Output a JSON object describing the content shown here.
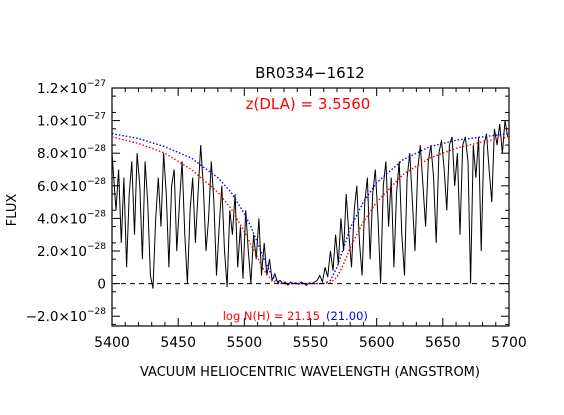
{
  "chart_data": {
    "type": "line",
    "title": "BR0334−1612",
    "xlabel": "VACUUM HELIOCENTRIC WAVELENGTH (ANGSTROM)",
    "ylabel": "FLUX",
    "xlim": [
      5400,
      5700
    ],
    "ylim": [
      -2.6e-28,
      1.2e-27
    ],
    "x_ticks": [
      5400,
      5450,
      5500,
      5550,
      5600,
      5650,
      5700
    ],
    "x_tick_labels": [
      "5400",
      "5450",
      "5500",
      "5550",
      "5600",
      "5650",
      "5700"
    ],
    "y_ticks": [
      {
        "value": -2e-28,
        "mant": "−2.0×10",
        "exp": "−28"
      },
      {
        "value": 0,
        "mant": "0",
        "exp": ""
      },
      {
        "value": 2e-28,
        "mant": "2.0×10",
        "exp": "−28"
      },
      {
        "value": 4e-28,
        "mant": "4.0×10",
        "exp": "−28"
      },
      {
        "value": 6e-28,
        "mant": "6.0×10",
        "exp": "−28"
      },
      {
        "value": 8e-28,
        "mant": "8.0×10",
        "exp": "−28"
      },
      {
        "value": 1e-27,
        "mant": "1.0×10",
        "exp": "−27"
      },
      {
        "value": 1.2e-27,
        "mant": "1.2×10",
        "exp": "−27"
      }
    ],
    "annotations": {
      "redshift": "z(DLA) = 3.5560",
      "logN_main": "log N(H) = 21.15",
      "logN_alt": "(21.00)"
    },
    "zero_line": {
      "y": 0,
      "style": "dashed"
    },
    "colors": {
      "spectrum": "#000000",
      "fit_main": "#ff0000",
      "fit_alt": "#0000ff",
      "zero": "#000000"
    },
    "series": [
      {
        "style": "solid",
        "color": "#000000",
        "x": [
          5400,
          5403,
          5405,
          5407,
          5409,
          5411,
          5413,
          5415,
          5417,
          5419,
          5421,
          5423,
          5425,
          5427,
          5429,
          5431,
          5433,
          5435,
          5437,
          5439,
          5441,
          5443,
          5445,
          5447,
          5449,
          5451,
          5453,
          5455,
          5457,
          5459,
          5461,
          5463,
          5465,
          5467,
          5469,
          5471,
          5473,
          5475,
          5477,
          5479,
          5481,
          5483,
          5485,
          5487,
          5489,
          5491,
          5493,
          5495,
          5497,
          5499,
          5501,
          5503,
          5505,
          5507,
          5509,
          5511,
          5513,
          5515,
          5517,
          5519,
          5521,
          5523,
          5525,
          5527,
          5529,
          5531,
          5533,
          5535,
          5537,
          5539,
          5541,
          5543,
          5545,
          5547,
          5549,
          5551,
          5553,
          5555,
          5557,
          5559,
          5561,
          5563,
          5565,
          5567,
          5569,
          5571,
          5573,
          5575,
          5577,
          5579,
          5581,
          5583,
          5585,
          5587,
          5589,
          5591,
          5593,
          5595,
          5597,
          5599,
          5601,
          5603,
          5605,
          5607,
          5609,
          5611,
          5613,
          5615,
          5617,
          5619,
          5621,
          5623,
          5625,
          5627,
          5629,
          5631,
          5633,
          5635,
          5637,
          5639,
          5641,
          5643,
          5645,
          5647,
          5649,
          5651,
          5653,
          5655,
          5657,
          5659,
          5661,
          5663,
          5665,
          5667,
          5669,
          5671,
          5673,
          5675,
          5677,
          5679,
          5681,
          5683,
          5685,
          5687,
          5689,
          5691,
          5693,
          5695,
          5697,
          5699
        ],
        "y": [
          8e-28,
          4.5e-28,
          7e-28,
          2.5e-28,
          6.5e-28,
          1e-28,
          5.5e-28,
          7.5e-28,
          3e-28,
          8e-28,
          6e-28,
          1.5e-28,
          7.5e-28,
          5e-28,
          5e-29,
          -3e-29,
          4e-28,
          6.5e-28,
          3.5e-28,
          8e-28,
          5.5e-28,
          1e-28,
          6e-28,
          7e-28,
          2e-28,
          5e-28,
          7.5e-28,
          3e-28,
          0.0,
          4.5e-28,
          6.5e-28,
          2.5e-28,
          5.5e-28,
          8.5e-28,
          6e-28,
          2e-28,
          4e-28,
          7.5e-28,
          5e-28,
          5e-29,
          3.5e-28,
          6e-28,
          2e-28,
          -2e-29,
          4.5e-28,
          3e-28,
          5.5e-28,
          1e-28,
          3.5e-28,
          3e-29,
          4.5e-28,
          2e-28,
          0.0,
          3e-28,
          1.5e-28,
          4e-28,
          5e-29,
          2.5e-28,
          5e-29,
          1.5e-28,
          2e-29,
          6e-29,
          1e-29,
          2e-29,
          0.0,
          1e-29,
          -1e-29,
          1e-29,
          0.0,
          5e-30,
          -5e-30,
          1e-29,
          0.0,
          -1e-29,
          5e-30,
          0.0,
          1e-29,
          2e-29,
          5e-29,
          1e-29,
          1e-28,
          4e-29,
          2e-28,
          8e-29,
          3e-28,
          1.2e-28,
          4e-28,
          2e-28,
          5.5e-28,
          3e-28,
          1e-28,
          4.5e-28,
          6e-28,
          2.5e-28,
          5e-29,
          5e-28,
          6.5e-28,
          1.5e-28,
          5.5e-28,
          7e-28,
          4e-28,
          0.0,
          6e-28,
          7.5e-28,
          3.5e-28,
          6.5e-28,
          1e-28,
          5.5e-28,
          7.5e-28,
          3e-28,
          5e-29,
          6.5e-28,
          8e-28,
          5e-28,
          2e-28,
          7e-28,
          8.5e-28,
          6e-28,
          3.5e-28,
          7.5e-28,
          8.5e-28,
          6.5e-28,
          2.5e-28,
          8e-28,
          8.8e-28,
          7e-28,
          4.5e-28,
          8.5e-28,
          9e-28,
          6e-28,
          8e-28,
          3e-28,
          8.5e-28,
          9e-28,
          7.5e-28,
          0.0,
          8.5e-28,
          6.5e-28,
          9e-28,
          2e-28,
          8.5e-28,
          9.2e-28,
          7e-28,
          5e-28,
          9.5e-28,
          8.5e-28,
          9.8e-28,
          8e-28,
          1e-27,
          9e-28
        ]
      },
      {
        "style": "dotted",
        "color": "#ff0000",
        "x": [
          5400,
          5420,
          5440,
          5460,
          5480,
          5490,
          5500,
          5505,
          5510,
          5515,
          5520,
          5525,
          5530,
          5535,
          5540,
          5545,
          5550,
          5555,
          5560,
          5565,
          5570,
          5575,
          5580,
          5590,
          5600,
          5620,
          5640,
          5660,
          5680,
          5700
        ],
        "y": [
          9e-28,
          8.6e-28,
          8e-28,
          7e-28,
          5.6e-28,
          4.6e-28,
          3.2e-28,
          2.4e-28,
          1.6e-28,
          8e-29,
          2.5e-29,
          2e-30,
          0.0,
          0.0,
          0.0,
          0.0,
          0.0,
          0.0,
          0.0,
          5e-30,
          4e-29,
          1.2e-28,
          2.2e-28,
          3.8e-28,
          5e-28,
          6.7e-28,
          7.7e-28,
          8.3e-28,
          8.7e-28,
          9e-28
        ]
      },
      {
        "style": "dotted",
        "color": "#0000ff",
        "x": [
          5400,
          5420,
          5440,
          5460,
          5480,
          5490,
          5500,
          5505,
          5510,
          5515,
          5520,
          5525,
          5530,
          5535,
          5540,
          5545,
          5550,
          5555,
          5560,
          5565,
          5570,
          5575,
          5580,
          5590,
          5600,
          5620,
          5640,
          5660,
          5680,
          5700
        ],
        "y": [
          9.2e-28,
          8.9e-28,
          8.4e-28,
          7.7e-28,
          6.5e-28,
          5.6e-28,
          4.3e-28,
          3.5e-28,
          2.5e-28,
          1.5e-28,
          6e-29,
          1e-29,
          0.0,
          0.0,
          0.0,
          0.0,
          0.0,
          0.0,
          0.0,
          2e-29,
          1e-28,
          2.2e-28,
          3.4e-28,
          5e-28,
          6.2e-28,
          7.6e-28,
          8.4e-28,
          8.8e-28,
          9e-28,
          9.2e-28
        ]
      }
    ]
  }
}
